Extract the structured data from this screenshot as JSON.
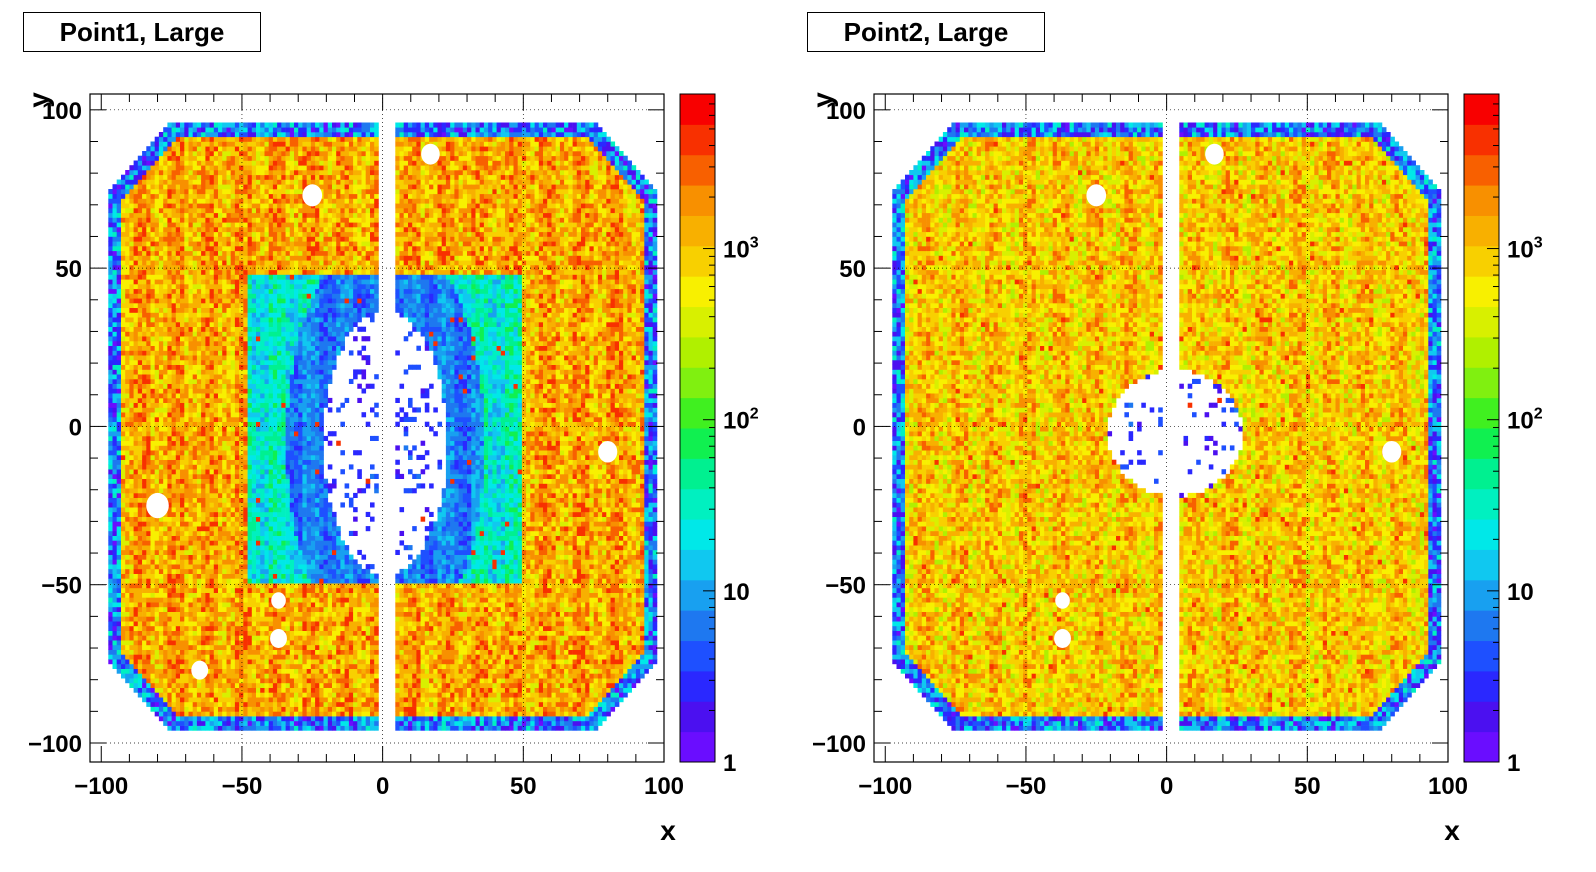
{
  "chart_data": [
    {
      "type": "heatmap",
      "title": "Point1, Large",
      "xlabel": "x",
      "ylabel": "y",
      "xlim": [
        -104,
        100
      ],
      "ylim": [
        -106,
        105
      ],
      "x_ticks": [
        "−100",
        "−50",
        "0",
        "50",
        "100"
      ],
      "y_ticks": [
        "100",
        "50",
        "0",
        "−50",
        "−100"
      ],
      "colorbar": {
        "scale": "log",
        "min": 1,
        "max": 8000,
        "tick_labels": [
          "1",
          "10",
          "10",
          "10"
        ],
        "tick_exponents": [
          "",
          "",
          "2",
          "3"
        ]
      },
      "grid": true
    },
    {
      "type": "heatmap",
      "title": "Point2, Large",
      "xlabel": "x",
      "ylabel": "y",
      "xlim": [
        -104,
        100
      ],
      "ylim": [
        -106,
        105
      ],
      "x_ticks": [
        "−100",
        "−50",
        "0",
        "50",
        "100"
      ],
      "y_ticks": [
        "100",
        "50",
        "0",
        "−50",
        "−100"
      ],
      "colorbar": {
        "scale": "log",
        "min": 1,
        "max": 8000,
        "tick_labels": [
          "1",
          "10",
          "10",
          "10"
        ],
        "tick_exponents": [
          "",
          "",
          "2",
          "3"
        ]
      },
      "grid": true
    }
  ],
  "colors": {
    "palette": [
      "#6a0dff",
      "#4b10f0",
      "#2a28ff",
      "#1e50ff",
      "#1e78f0",
      "#18a0f0",
      "#10c8f0",
      "#00e8e8",
      "#00f0c0",
      "#00f090",
      "#10f050",
      "#40f020",
      "#80f010",
      "#b0f000",
      "#d8f000",
      "#f8f000",
      "#f8d000",
      "#f8b000",
      "#f89000",
      "#f86000",
      "#f83000",
      "#f80000"
    ]
  }
}
